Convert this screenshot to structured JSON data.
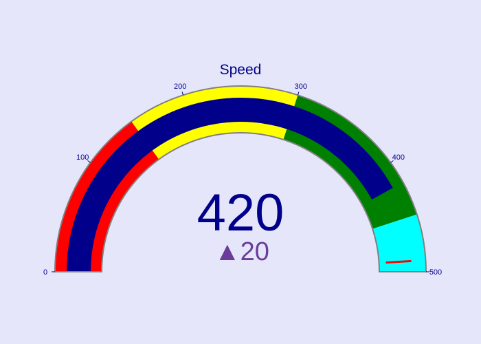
{
  "chart_data": {
    "type": "gauge",
    "title": "Speed",
    "value": 420,
    "reference": 400,
    "delta": {
      "text": "20",
      "symbol": "▲",
      "color": "#6a3d9a"
    },
    "range": [
      0,
      500
    ],
    "tick_values": [
      0,
      100,
      200,
      300,
      400,
      500
    ],
    "tick_labels": [
      "0",
      "100",
      "200",
      "300",
      "400",
      "500"
    ],
    "bar": {
      "value": 420,
      "color": "#00008b"
    },
    "threshold": {
      "value": 490,
      "color": "#ff0000"
    },
    "outer_steps": [
      {
        "range": [
          0,
          150
        ],
        "color": "#ff0000"
      },
      {
        "range": [
          150,
          300
        ],
        "color": "#ffff00"
      },
      {
        "range": [
          300,
          450
        ],
        "color": "#008000"
      },
      {
        "range": [
          450,
          500
        ],
        "color": "#00ffff"
      }
    ],
    "inner_steps": [
      {
        "range": [
          0,
          150
        ],
        "color": "#ff0000"
      },
      {
        "range": [
          150,
          300
        ],
        "color": "#ffff00"
      },
      {
        "range": [
          300,
          450
        ],
        "color": "#008000"
      },
      {
        "range": [
          450,
          500
        ],
        "color": "#00ffff"
      }
    ],
    "colors": {
      "background": "#e6e6fa",
      "text": "#00008b",
      "border": "#808080",
      "bar": "#00008b"
    }
  }
}
